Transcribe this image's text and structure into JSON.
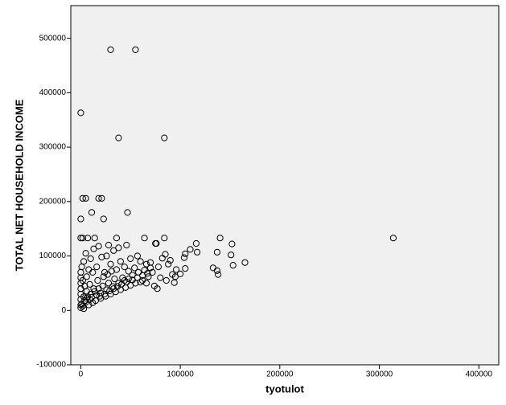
{
  "chart_data": {
    "type": "scatter",
    "title": "",
    "xlabel": "tyotulot",
    "ylabel": "TOTAL NET HOUSEHOLD INCOME",
    "xlim": [
      -10000,
      420000
    ],
    "ylim": [
      -100000,
      560000
    ],
    "x_ticks": [
      0,
      100000,
      200000,
      300000,
      400000
    ],
    "y_ticks": [
      -100000,
      0,
      100000,
      200000,
      300000,
      400000,
      500000
    ],
    "x_tick_labels": [
      "0",
      "100000",
      "200000",
      "300000",
      "400000"
    ],
    "y_tick_labels": [
      "-100000",
      "0",
      "100000",
      "200000",
      "300000",
      "400000",
      "500000"
    ],
    "grid": false,
    "legend": "none",
    "background": "#f0f0f0",
    "marker": "open-circle",
    "marker_color": "#000000",
    "series": [
      {
        "values": [
          [
            30000,
            479000
          ],
          [
            55000,
            479000
          ],
          [
            0,
            363000
          ],
          [
            38000,
            317000
          ],
          [
            84000,
            317000
          ],
          [
            2000,
            206000
          ],
          [
            5000,
            206000
          ],
          [
            18000,
            206000
          ],
          [
            21000,
            206000
          ],
          [
            47000,
            180000
          ],
          [
            11000,
            180000
          ],
          [
            0,
            168000
          ],
          [
            23000,
            168000
          ],
          [
            314000,
            133000
          ],
          [
            140000,
            133000
          ],
          [
            165000,
            88000
          ],
          [
            152000,
            122000
          ],
          [
            153000,
            83000
          ],
          [
            151000,
            102000
          ],
          [
            137000,
            107000
          ],
          [
            133000,
            78000
          ],
          [
            138000,
            66000
          ],
          [
            137000,
            73000
          ],
          [
            116000,
            123000
          ],
          [
            117000,
            107000
          ],
          [
            110000,
            112000
          ],
          [
            105000,
            104000
          ],
          [
            104000,
            97000
          ],
          [
            105000,
            77000
          ],
          [
            100000,
            67000
          ],
          [
            96000,
            75000
          ],
          [
            95000,
            62000
          ],
          [
            94000,
            51000
          ],
          [
            84000,
            133000
          ],
          [
            85000,
            103000
          ],
          [
            82000,
            96000
          ],
          [
            75000,
            123000
          ],
          [
            76000,
            123000
          ],
          [
            64000,
            133000
          ],
          [
            36000,
            133000
          ],
          [
            0,
            133000
          ],
          [
            2000,
            133000
          ],
          [
            7000,
            133000
          ],
          [
            14000,
            133000
          ],
          [
            28000,
            120000
          ],
          [
            18000,
            118000
          ],
          [
            13000,
            113000
          ],
          [
            46000,
            120000
          ],
          [
            38000,
            115000
          ],
          [
            33000,
            110000
          ],
          [
            26000,
            100000
          ],
          [
            21000,
            98000
          ],
          [
            50000,
            95000
          ],
          [
            57000,
            100000
          ],
          [
            60000,
            90000
          ],
          [
            66000,
            85000
          ],
          [
            70000,
            88000
          ],
          [
            78000,
            80000
          ],
          [
            88000,
            85000
          ],
          [
            90000,
            92000
          ],
          [
            72000,
            70000
          ],
          [
            80000,
            60000
          ],
          [
            86000,
            55000
          ],
          [
            92000,
            66000
          ],
          [
            44000,
            80000
          ],
          [
            40000,
            90000
          ],
          [
            30000,
            85000
          ],
          [
            10000,
            95000
          ],
          [
            5000,
            105000
          ],
          [
            3000,
            90000
          ],
          [
            1000,
            80000
          ],
          [
            68000,
            62000
          ],
          [
            62000,
            55000
          ],
          [
            58000,
            70000
          ],
          [
            52000,
            65000
          ],
          [
            48000,
            58000
          ],
          [
            74000,
            45000
          ],
          [
            77000,
            40000
          ],
          [
            66000,
            50000
          ],
          [
            36000,
            75000
          ],
          [
            24000,
            70000
          ],
          [
            16000,
            80000
          ],
          [
            12000,
            70000
          ],
          [
            8000,
            75000
          ],
          [
            0,
            60000
          ],
          [
            0,
            70000
          ],
          [
            0,
            50000
          ],
          [
            0,
            40000
          ],
          [
            0,
            30000
          ],
          [
            0,
            20000
          ],
          [
            0,
            10000
          ],
          [
            0,
            5000
          ],
          [
            2000,
            55000
          ],
          [
            4000,
            45000
          ],
          [
            6000,
            35000
          ],
          [
            3000,
            25000
          ],
          [
            5000,
            15000
          ],
          [
            8000,
            10000
          ],
          [
            12000,
            14000
          ],
          [
            15000,
            18000
          ],
          [
            20000,
            22000
          ],
          [
            25000,
            26000
          ],
          [
            30000,
            30000
          ],
          [
            35000,
            34000
          ],
          [
            40000,
            38000
          ],
          [
            45000,
            42000
          ],
          [
            50000,
            46000
          ],
          [
            55000,
            50000
          ],
          [
            60000,
            52000
          ],
          [
            42000,
            60000
          ],
          [
            34000,
            58000
          ],
          [
            28000,
            50000
          ],
          [
            22000,
            45000
          ],
          [
            18000,
            40000
          ],
          [
            14000,
            35000
          ],
          [
            10000,
            30000
          ],
          [
            7000,
            25000
          ],
          [
            48000,
            72000
          ],
          [
            54000,
            78000
          ],
          [
            64000,
            74000
          ],
          [
            70000,
            78000
          ],
          [
            38000,
            50000
          ],
          [
            44000,
            55000
          ],
          [
            26000,
            38000
          ],
          [
            32000,
            44000
          ],
          [
            16000,
            28000
          ],
          [
            20000,
            32000
          ],
          [
            9000,
            20000
          ],
          [
            11000,
            24000
          ],
          [
            13000,
            40000
          ],
          [
            17000,
            55000
          ],
          [
            23000,
            62000
          ],
          [
            27000,
            66000
          ],
          [
            31000,
            72000
          ],
          [
            6000,
            62000
          ],
          [
            9000,
            48000
          ],
          [
            1000,
            12000
          ],
          [
            2000,
            8000
          ],
          [
            3000,
            3000
          ],
          [
            4000,
            18000
          ],
          [
            6000,
            22000
          ],
          [
            19000,
            26000
          ],
          [
            24000,
            30000
          ],
          [
            29000,
            36000
          ],
          [
            33000,
            40000
          ],
          [
            37000,
            44000
          ],
          [
            41000,
            48000
          ],
          [
            46000,
            52000
          ],
          [
            52000,
            56000
          ],
          [
            57000,
            60000
          ],
          [
            62000,
            64000
          ],
          [
            67000,
            68000
          ]
        ]
      }
    ]
  }
}
